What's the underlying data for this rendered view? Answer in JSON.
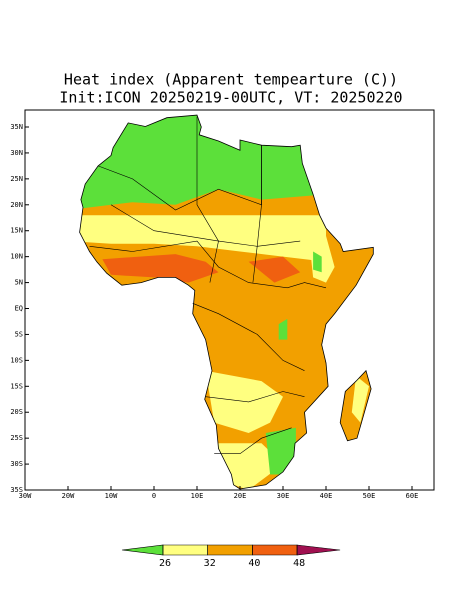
{
  "title": "Heat index (Apparent tempearture (C))",
  "subtitle": "Init:ICON 20250219-00UTC, VT: 20250220",
  "lat_ticks": [
    {
      "value": 35,
      "label": "35N"
    },
    {
      "value": 30,
      "label": "30N"
    },
    {
      "value": 25,
      "label": "25N"
    },
    {
      "value": 20,
      "label": "20N"
    },
    {
      "value": 15,
      "label": "15N"
    },
    {
      "value": 10,
      "label": "10N"
    },
    {
      "value": 5,
      "label": "5N"
    },
    {
      "value": 0,
      "label": "EQ"
    },
    {
      "value": -5,
      "label": "5S"
    },
    {
      "value": -10,
      "label": "10S"
    },
    {
      "value": -15,
      "label": "15S"
    },
    {
      "value": -20,
      "label": "20S"
    },
    {
      "value": -25,
      "label": "25S"
    },
    {
      "value": -30,
      "label": "30S"
    },
    {
      "value": -35,
      "label": "35S"
    }
  ],
  "lon_ticks": [
    {
      "value": -30,
      "label": "30W"
    },
    {
      "value": -20,
      "label": "20W"
    },
    {
      "value": -10,
      "label": "10W"
    },
    0,
    {
      "value": 10,
      "label": "10E"
    },
    {
      "value": 20,
      "label": "20E"
    },
    {
      "value": 30,
      "label": "30E"
    },
    {
      "value": 40,
      "label": "40E"
    },
    {
      "value": 50,
      "label": "50E"
    },
    {
      "value": 60,
      "label": "60E"
    }
  ],
  "colorbar": {
    "levels": [
      26,
      32,
      40,
      48
    ],
    "colors": [
      "#5ce03a",
      "#ffff80",
      "#f2a000",
      "#f06010",
      "#a01050"
    ]
  }
}
